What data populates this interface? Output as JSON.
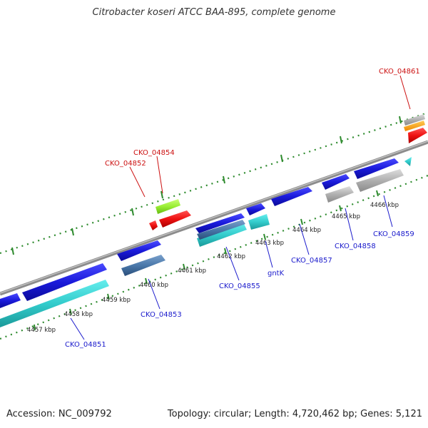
{
  "title": "Citrobacter koseri ATCC BAA-895, complete genome",
  "footer": {
    "accession": "Accession: NC_009792",
    "summary": "Topology: circular; Length: 4,720,462 bp; Genes: 5,121"
  },
  "colors": {
    "backbone": "#8c8c8c",
    "ruler_ticks": "#2e8b2e",
    "forward_cds": "#1a1adb",
    "reverse_cds": "#33cccc",
    "pseudo_or_unknown": "#b0b0b0",
    "red_feature": "#ee1111",
    "green_feature": "#99ee33",
    "label_blue": "#1a1acc",
    "label_red": "#cc1111"
  },
  "scale_ticks": [
    {
      "label": "4457 kbp"
    },
    {
      "label": "4458 kbp"
    },
    {
      "label": "4459 kbp"
    },
    {
      "label": "4460 kbp"
    },
    {
      "label": "4461 kbp"
    },
    {
      "label": "4462 kbp"
    },
    {
      "label": "4463 kbp"
    },
    {
      "label": "4464 kbp"
    },
    {
      "label": "4465 kbp"
    },
    {
      "label": "4466 kbp"
    }
  ],
  "gene_labels": [
    {
      "id": "CKO_04851",
      "text": "CKO_04851",
      "color": "blue"
    },
    {
      "id": "CKO_04852",
      "text": "CKO_04852",
      "color": "red"
    },
    {
      "id": "CKO_04853",
      "text": "CKO_04853",
      "color": "blue"
    },
    {
      "id": "CKO_04854",
      "text": "CKO_04854",
      "color": "red"
    },
    {
      "id": "CKO_04855",
      "text": "CKO_04855",
      "color": "blue"
    },
    {
      "id": "gntK",
      "text": "gntK",
      "color": "blue"
    },
    {
      "id": "CKO_04857",
      "text": "CKO_04857",
      "color": "blue"
    },
    {
      "id": "CKO_04858",
      "text": "CKO_04858",
      "color": "blue"
    },
    {
      "id": "CKO_04859",
      "text": "CKO_04859",
      "color": "blue"
    },
    {
      "id": "CKO_04861",
      "text": "CKO_04861",
      "color": "red"
    }
  ]
}
